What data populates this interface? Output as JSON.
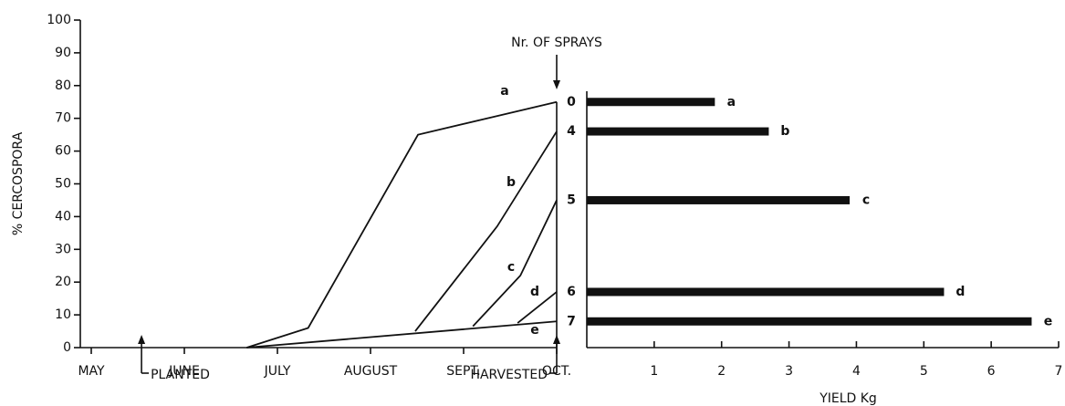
{
  "chart_data": [
    {
      "type": "line",
      "ylabel": "% CERCOSPORA",
      "ylim": [
        0,
        100
      ],
      "yticks": [
        0,
        10,
        20,
        30,
        40,
        50,
        60,
        70,
        80,
        90,
        100
      ],
      "xlim": [
        0,
        5
      ],
      "xticks": [
        {
          "value": 0,
          "label": "MAY"
        },
        {
          "value": 1,
          "label": "JUNE"
        },
        {
          "value": 2,
          "label": "JULY"
        },
        {
          "value": 3,
          "label": "AUGUST"
        },
        {
          "value": 4,
          "label": "SEPT."
        },
        {
          "value": 5,
          "label": "OCT."
        }
      ],
      "series": [
        {
          "name": "a",
          "color": "#111",
          "x": [
            1.67,
            2.33,
            3.51,
            5
          ],
          "values": [
            0,
            6,
            65,
            75
          ]
        },
        {
          "name": "b",
          "color": "#111",
          "x": [
            3.48,
            4.36,
            5
          ],
          "values": [
            5,
            37,
            66
          ]
        },
        {
          "name": "c",
          "color": "#111",
          "x": [
            4.1,
            4.61,
            5
          ],
          "values": [
            6.5,
            22,
            45
          ]
        },
        {
          "name": "d",
          "color": "#111",
          "x": [
            4.58,
            5
          ],
          "values": [
            7.5,
            17
          ]
        },
        {
          "name": "e",
          "color": "#111",
          "x": [
            1.67,
            5
          ],
          "values": [
            0,
            8
          ]
        }
      ],
      "annotations": [
        {
          "text": "PLANTED",
          "x": 0.54
        },
        {
          "text": "HARVESTED",
          "x": 5
        }
      ]
    },
    {
      "type": "hbar",
      "title": "Nr. OF SPRAYS",
      "xlabel": "YIELD Kg",
      "categories": [
        "0",
        "4",
        "5",
        "6",
        "7"
      ],
      "labels": [
        "a",
        "b",
        "c",
        "d",
        "e"
      ],
      "values": [
        1.9,
        2.7,
        3.9,
        5.3,
        6.6
      ],
      "color": "#111",
      "xlim": [
        0,
        7
      ],
      "xticks": [
        1,
        2,
        3,
        4,
        5,
        6,
        7
      ]
    }
  ]
}
